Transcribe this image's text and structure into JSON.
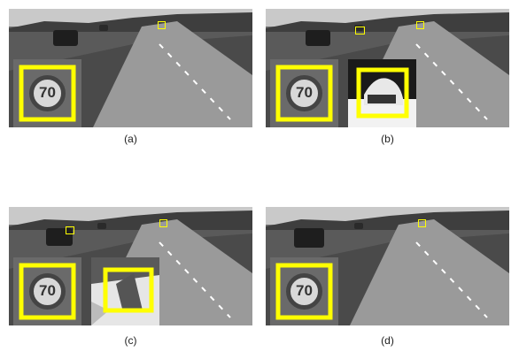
{
  "panels": [
    {
      "caption": "(a)",
      "sign": "70",
      "insets": [
        "sign"
      ],
      "boxes": [
        "sign"
      ]
    },
    {
      "caption": "(b)",
      "sign": "70",
      "insets": [
        "sign",
        "car"
      ],
      "boxes": [
        "sign",
        "car"
      ]
    },
    {
      "caption": "(c)",
      "sign": "70",
      "insets": [
        "sign",
        "fp"
      ],
      "boxes": [
        "sign",
        "fp"
      ]
    },
    {
      "caption": "(d)",
      "sign": "70",
      "insets": [
        "sign"
      ],
      "boxes": [
        "sign"
      ]
    }
  ],
  "colors": {
    "detection": "#ffff00"
  }
}
